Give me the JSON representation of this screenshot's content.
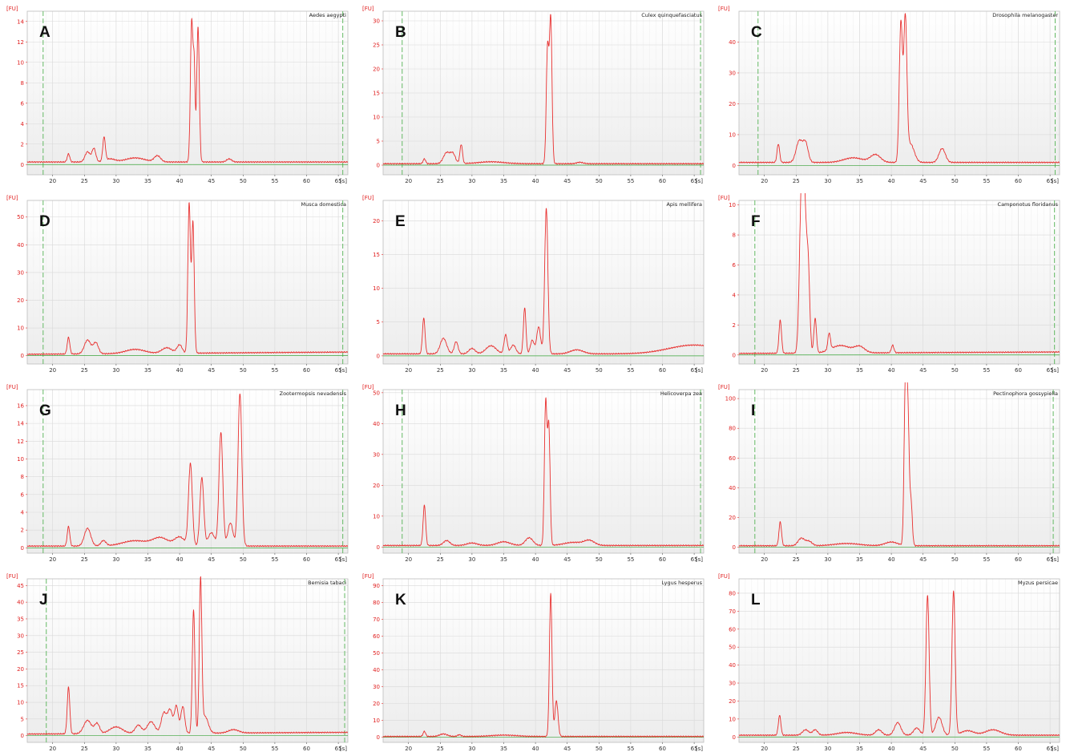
{
  "y_unit": "[FU]",
  "x_unit": "[s]",
  "chart_data": [
    {
      "type": "line",
      "letter": "A",
      "title": "Aedes aegypti",
      "ylim": [
        -1,
        15
      ],
      "yticks": [
        0,
        2,
        4,
        6,
        8,
        10,
        12,
        14
      ],
      "xlim": [
        16,
        66.5
      ],
      "xticks": [
        20,
        25,
        30,
        35,
        40,
        45,
        50,
        55,
        60,
        65
      ],
      "ladder_lines": [
        18.5,
        65.7
      ],
      "grid": true,
      "series": [
        {
          "name": "",
          "baseline": 0.25,
          "drift": 0,
          "hump": [],
          "peaks": [
            [
              22.5,
              0.8,
              0.2
            ],
            [
              25.5,
              1.0,
              0.4
            ],
            [
              26.5,
              1.3,
              0.3
            ],
            [
              28.1,
              2.3,
              0.2
            ],
            [
              29,
              0.3,
              0.8
            ],
            [
              33,
              0.4,
              1.5
            ],
            [
              36.5,
              0.6,
              0.5
            ],
            [
              41.9,
              13.8,
              0.2
            ],
            [
              42.3,
              8.5,
              0.15
            ],
            [
              42.9,
              13.2,
              0.2
            ],
            [
              47.8,
              0.3,
              0.4
            ]
          ]
        }
      ]
    },
    {
      "type": "line",
      "letter": "B",
      "title": "Culex quinquefasciatus",
      "ylim": [
        -2,
        32
      ],
      "yticks": [
        0,
        5,
        10,
        15,
        20,
        25,
        30
      ],
      "xlim": [
        16,
        66.5
      ],
      "xticks": [
        20,
        25,
        30,
        35,
        40,
        45,
        50,
        55,
        60,
        65
      ],
      "ladder_lines": [
        19,
        66
      ],
      "grid": true,
      "series": [
        {
          "name": "",
          "baseline": 0.3,
          "drift": 0,
          "hump": [],
          "peaks": [
            [
              22.5,
              1.0,
              0.2
            ],
            [
              26,
              2.3,
              0.5
            ],
            [
              27,
              2.0,
              0.4
            ],
            [
              28.3,
              4.0,
              0.2
            ],
            [
              33,
              0.4,
              2
            ],
            [
              41.9,
              24,
              0.2
            ],
            [
              42.4,
              30,
              0.2
            ],
            [
              47,
              0.3,
              0.5
            ]
          ]
        }
      ]
    },
    {
      "type": "line",
      "letter": "C",
      "title": "Drosophila melanogaster",
      "ylim": [
        -3,
        50
      ],
      "yticks": [
        0,
        10,
        20,
        30,
        40
      ],
      "xlim": [
        16,
        66.5
      ],
      "xticks": [
        20,
        25,
        30,
        35,
        40,
        45,
        50,
        55,
        60,
        65
      ],
      "ladder_lines": [
        19,
        65.8
      ],
      "grid": true,
      "series": [
        {
          "name": "",
          "baseline": 1.0,
          "drift": 0,
          "hump": [],
          "peaks": [
            [
              22.2,
              6,
              0.2
            ],
            [
              25.5,
              7,
              0.5
            ],
            [
              26.5,
              6,
              0.4
            ],
            [
              34,
              1.5,
              1.5
            ],
            [
              37.5,
              2.5,
              0.8
            ],
            [
              41.5,
              45,
              0.25
            ],
            [
              42.2,
              45,
              0.25
            ],
            [
              43,
              6,
              0.6
            ],
            [
              48,
              4.5,
              0.5
            ]
          ]
        }
      ]
    },
    {
      "type": "line",
      "letter": "D",
      "title": "Musca domestica",
      "ylim": [
        -3,
        56
      ],
      "yticks": [
        0,
        10,
        20,
        30,
        40,
        50
      ],
      "xlim": [
        16,
        66.5
      ],
      "xticks": [
        20,
        25,
        30,
        35,
        40,
        45,
        50,
        55,
        60,
        65
      ],
      "ladder_lines": [
        18.5,
        65.7
      ],
      "grid": true,
      "series": [
        {
          "name": "",
          "baseline": 0.5,
          "drift": 0.8,
          "hump": [],
          "peaks": [
            [
              22.5,
              6,
              0.2
            ],
            [
              25.5,
              5,
              0.5
            ],
            [
              26.8,
              4,
              0.4
            ],
            [
              33,
              1.5,
              1.5
            ],
            [
              38,
              2,
              0.8
            ],
            [
              40,
              3,
              0.4
            ],
            [
              41.5,
              54,
              0.2
            ],
            [
              42.1,
              47,
              0.2
            ]
          ]
        }
      ]
    },
    {
      "type": "line",
      "letter": "E",
      "title": "Apis mellifera",
      "ylim": [
        -1.2,
        23
      ],
      "yticks": [
        0,
        5,
        10,
        15,
        20
      ],
      "xlim": [
        16,
        66.5
      ],
      "xticks": [
        20,
        25,
        30,
        35,
        40,
        45,
        50,
        55,
        60,
        65
      ],
      "ladder_lines": [],
      "grid": true,
      "series": [
        {
          "name": "",
          "baseline": 0.3,
          "drift": 0,
          "hump": [
            65,
            1.3,
            4
          ],
          "peaks": [
            [
              22.4,
              5.3,
              0.2
            ],
            [
              25.5,
              2.3,
              0.5
            ],
            [
              27.5,
              1.8,
              0.3
            ],
            [
              30,
              0.8,
              0.5
            ],
            [
              33,
              1.2,
              0.8
            ],
            [
              35.3,
              2.8,
              0.25
            ],
            [
              36.5,
              1.3,
              0.4
            ],
            [
              38.3,
              6.8,
              0.2
            ],
            [
              39.5,
              2.0,
              0.3
            ],
            [
              40.5,
              4.0,
              0.3
            ],
            [
              41.7,
              21.5,
              0.25
            ],
            [
              46.5,
              0.6,
              1
            ]
          ]
        }
      ]
    },
    {
      "type": "line",
      "letter": "F",
      "title": "Camponotus floridanus",
      "ylim": [
        -0.6,
        10.3
      ],
      "yticks": [
        0,
        2,
        4,
        6,
        8,
        10
      ],
      "xlim": [
        16,
        66.5
      ],
      "xticks": [
        20,
        25,
        30,
        35,
        40,
        45,
        50,
        55,
        60,
        65
      ],
      "ladder_lines": [
        18.5,
        65.7
      ],
      "grid": true,
      "series": [
        {
          "name": "",
          "baseline": 0.1,
          "drift": 0.1,
          "hump": [],
          "peaks": [
            [
              22.5,
              2.2,
              0.2
            ],
            [
              25.8,
              9.2,
              0.3
            ],
            [
              26.3,
              9.3,
              0.3
            ],
            [
              26.9,
              5.5,
              0.25
            ],
            [
              28,
              2.3,
              0.2
            ],
            [
              30.2,
              1.1,
              0.2
            ],
            [
              32,
              0.5,
              1.5
            ],
            [
              35,
              0.4,
              0.8
            ],
            [
              40.2,
              0.5,
              0.2
            ]
          ]
        }
      ]
    },
    {
      "type": "line",
      "letter": "G",
      "title": "Zootermopsis nevadensis",
      "ylim": [
        -0.6,
        17.8
      ],
      "yticks": [
        0,
        2,
        4,
        6,
        8,
        10,
        12,
        14,
        16
      ],
      "xlim": [
        16,
        66.5
      ],
      "xticks": [
        20,
        25,
        30,
        35,
        40,
        45,
        50,
        55,
        60,
        65
      ],
      "ladder_lines": [
        18.5,
        65.7
      ],
      "grid": true,
      "series": [
        {
          "name": "",
          "baseline": 0.2,
          "drift": 0,
          "hump": [],
          "peaks": [
            [
              22.5,
              2.2,
              0.2
            ],
            [
              25.5,
              2.0,
              0.5
            ],
            [
              28,
              0.6,
              0.4
            ],
            [
              33,
              0.6,
              2
            ],
            [
              37,
              0.9,
              1.2
            ],
            [
              40,
              1.0,
              0.8
            ],
            [
              41.7,
              9.2,
              0.3
            ],
            [
              43.5,
              7.7,
              0.3
            ],
            [
              45,
              1.5,
              0.5
            ],
            [
              46.5,
              12.8,
              0.3
            ],
            [
              48,
              2.6,
              0.4
            ],
            [
              49.5,
              17.2,
              0.3
            ]
          ]
        }
      ]
    },
    {
      "type": "line",
      "letter": "H",
      "title": "Helicoverpa zea",
      "ylim": [
        -2,
        51
      ],
      "yticks": [
        0,
        10,
        20,
        30,
        40,
        50
      ],
      "xlim": [
        16,
        66.5
      ],
      "xticks": [
        20,
        25,
        30,
        35,
        40,
        45,
        50,
        55,
        60,
        65
      ],
      "ladder_lines": [
        19,
        66
      ],
      "grid": true,
      "series": [
        {
          "name": "",
          "baseline": 0.5,
          "drift": 0,
          "hump": [],
          "peaks": [
            [
              22.5,
              13,
              0.2
            ],
            [
              26,
              1.6,
              0.5
            ],
            [
              30,
              0.8,
              0.8
            ],
            [
              35,
              1.2,
              1
            ],
            [
              39,
              2.5,
              0.6
            ],
            [
              41.6,
              46,
              0.2
            ],
            [
              42.1,
              38,
              0.2
            ],
            [
              46,
              1.0,
              1.5
            ],
            [
              48.5,
              1.5,
              0.8
            ]
          ]
        }
      ]
    },
    {
      "type": "line",
      "letter": "I",
      "title": "Pectinophora gossypiella",
      "ylim": [
        -4,
        106
      ],
      "yticks": [
        0,
        20,
        40,
        60,
        80,
        100
      ],
      "xlim": [
        16,
        66.5
      ],
      "xticks": [
        20,
        25,
        30,
        35,
        40,
        45,
        50,
        55,
        60,
        65
      ],
      "ladder_lines": [
        18.5,
        65.5
      ],
      "grid": true,
      "series": [
        {
          "name": "",
          "baseline": 1.0,
          "drift": 0,
          "hump": [],
          "peaks": [
            [
              22.5,
              16,
              0.2
            ],
            [
              25.8,
              5,
              0.5
            ],
            [
              27,
              3,
              0.5
            ],
            [
              33,
              1.5,
              2
            ],
            [
              40,
              2.5,
              1
            ],
            [
              42.2,
              103,
              0.2
            ],
            [
              42.6,
              88,
              0.2
            ],
            [
              43.1,
              29,
              0.2
            ]
          ]
        }
      ]
    },
    {
      "type": "line",
      "letter": "J",
      "title": "Bemisia tabaci",
      "ylim": [
        -2,
        47
      ],
      "yticks": [
        0,
        5,
        10,
        15,
        20,
        25,
        30,
        35,
        40,
        45
      ],
      "xlim": [
        16,
        66.5
      ],
      "xticks": [
        20,
        25,
        30,
        35,
        40,
        45,
        50,
        55,
        60,
        65
      ],
      "ladder_lines": [
        19,
        66
      ],
      "grid": true,
      "series": [
        {
          "name": "",
          "baseline": 0.5,
          "drift": 0.5,
          "hump": [],
          "peaks": [
            [
              22.5,
              14,
              0.2
            ],
            [
              25.5,
              4,
              0.6
            ],
            [
              27,
              3,
              0.4
            ],
            [
              30,
              2,
              1
            ],
            [
              33.5,
              2.5,
              0.5
            ],
            [
              35.5,
              3.5,
              0.6
            ],
            [
              37.5,
              6,
              0.4
            ],
            [
              38.5,
              7,
              0.4
            ],
            [
              39.5,
              8,
              0.3
            ],
            [
              40.5,
              8,
              0.3
            ],
            [
              42.2,
              37,
              0.2
            ],
            [
              43.3,
              45,
              0.2
            ],
            [
              44,
              5,
              0.5
            ],
            [
              48.5,
              1,
              0.8
            ]
          ]
        }
      ]
    },
    {
      "type": "line",
      "letter": "K",
      "title": "Lygus hesperus",
      "ylim": [
        -3,
        94
      ],
      "yticks": [
        0,
        10,
        20,
        30,
        40,
        50,
        60,
        70,
        80,
        90
      ],
      "xlim": [
        16,
        66.5
      ],
      "xticks": [
        20,
        25,
        30,
        35,
        40,
        45,
        50,
        55,
        60,
        65
      ],
      "ladder_lines": [],
      "grid": true,
      "series": [
        {
          "name": "",
          "baseline": 0.5,
          "drift": 0,
          "hump": [],
          "peaks": [
            [
              22.5,
              3,
              0.2
            ],
            [
              25.5,
              1.5,
              0.6
            ],
            [
              28,
              1,
              0.3
            ],
            [
              35,
              0.8,
              2
            ],
            [
              42.4,
              85,
              0.2
            ],
            [
              43.3,
              21,
              0.25
            ]
          ]
        }
      ]
    },
    {
      "type": "line",
      "letter": "L",
      "title": "Myzus persicae",
      "ylim": [
        -3,
        88
      ],
      "yticks": [
        0,
        10,
        20,
        30,
        40,
        50,
        60,
        70,
        80
      ],
      "xlim": [
        16,
        66.5
      ],
      "xticks": [
        20,
        25,
        30,
        35,
        40,
        45,
        50,
        55,
        60,
        65
      ],
      "ladder_lines": [],
      "grid": true,
      "series": [
        {
          "name": "",
          "baseline": 1.0,
          "drift": 0,
          "hump": [],
          "peaks": [
            [
              22.4,
              11,
              0.2
            ],
            [
              26.5,
              3,
              0.5
            ],
            [
              28,
              3,
              0.4
            ],
            [
              33,
              1.5,
              1.5
            ],
            [
              38,
              3,
              0.5
            ],
            [
              41,
              7,
              0.5
            ],
            [
              44,
              4,
              0.5
            ],
            [
              45.7,
              78,
              0.25
            ],
            [
              47.5,
              10,
              0.5
            ],
            [
              49.8,
              80,
              0.25
            ],
            [
              52,
              2.5,
              1
            ],
            [
              56,
              3,
              1.2
            ]
          ]
        }
      ]
    }
  ],
  "colors": {
    "trace": "#e8302f",
    "baseline": "#3aa63a",
    "ladder": "#64b964",
    "grid": "#d9d9d9",
    "frame": "#bdbdbd",
    "bg": "#ffffff",
    "plot_bg_bottom": "#ececec"
  }
}
